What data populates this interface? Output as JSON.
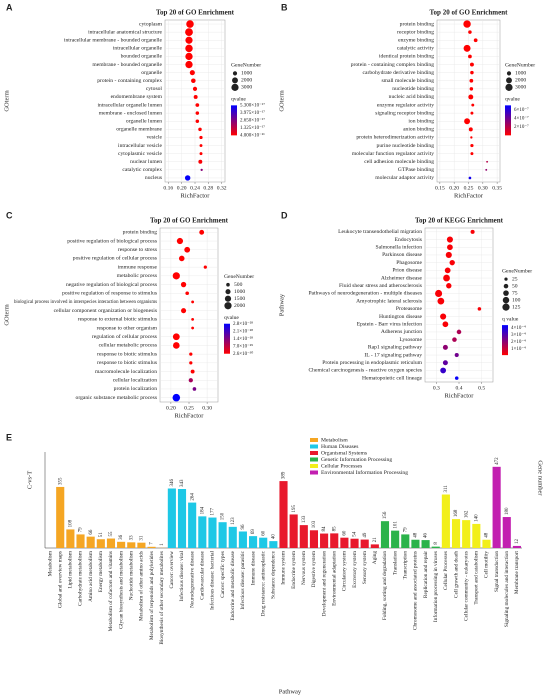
{
  "chart_data": [
    {
      "type": "bubble",
      "panel_label": "A",
      "title": "Top 20 of GO Enrichment",
      "y_label": "GOterm",
      "x_label": "RichFactor",
      "categories": [
        "cytoplasm",
        "intracellular anatomical structure",
        "intracellular membrane - bounded organelle",
        "intracellular organelle",
        "bounded organelle",
        "membrane - bounded organelle",
        "organelle",
        "protein - containing complex",
        "cytosol",
        "endomembrane system",
        "intracellular organelle lumen",
        "membrane - enclosed lumen",
        "organelle lumen",
        "organelle membrane",
        "vesicle",
        "intracellular vesicle",
        "cytoplasmic vesicle",
        "nuclear lumen",
        "catalytic complex",
        "nucleus"
      ],
      "values": [
        0.225,
        0.222,
        0.222,
        0.222,
        0.222,
        0.222,
        0.232,
        0.235,
        0.24,
        0.242,
        0.247,
        0.247,
        0.247,
        0.255,
        0.258,
        0.258,
        0.258,
        0.256,
        0.26,
        0.218
      ],
      "sizes": [
        3300,
        3500,
        3000,
        3200,
        3100,
        3100,
        1500,
        1200,
        1000,
        900,
        800,
        700,
        700,
        700,
        600,
        500,
        500,
        900,
        300,
        1700
      ],
      "qvalues": [
        1e-20,
        1e-20,
        1e-20,
        1e-20,
        1e-20,
        1e-20,
        1e-20,
        1e-20,
        1e-20,
        1e-20,
        1e-20,
        1e-20,
        1e-20,
        1e-20,
        1e-20,
        1e-20,
        1e-20,
        1e-18,
        2.5e-17,
        5.2e-17
      ],
      "xlim": [
        0.15,
        0.33
      ],
      "xticks": [
        0.16,
        {
          "value": 0.2,
          "label": "0.20"
        },
        {
          "value": 0.24,
          "label": "0.24"
        },
        {
          "value": 0.28,
          "label": "0.28"
        },
        {
          "value": 0.32,
          "label": "0.32"
        }
      ],
      "size_title": "GeneNumber",
      "size_ticks": [
        1000,
        2000,
        3000
      ],
      "color_title": "qvalue",
      "color_lim": [
        4e-21,
        5.3e-17
      ],
      "colors": [
        "#ff0000",
        "#0000ff"
      ],
      "color_ticks": [
        {
          "value": 5.3e-17,
          "label": "5.300×10⁻¹⁷"
        },
        {
          "value": 3.975e-17,
          "label": "3.975×10⁻¹⁷"
        },
        {
          "value": 2.65e-17,
          "label": "2.650×10⁻¹⁷"
        },
        {
          "value": 1.325e-17,
          "label": "1.325×10⁻¹⁷"
        },
        {
          "value": 4e-21,
          "label": "4.000×10⁻²¹"
        }
      ]
    },
    {
      "type": "bubble",
      "panel_label": "B",
      "title": "Top 20 of GO Enrichment",
      "y_label": "GOterm",
      "x_label": "RichFactor",
      "categories": [
        "protein binding",
        "receptor binding",
        "enzyme binding",
        "catalytic activity",
        "identical protein binding",
        "protein - containing complex binding",
        "carbohydrate derivative binding",
        "small molecule binding",
        "nucleotide binding",
        "nucleic acid binding",
        "enzyme regulator activity",
        "signaling receptor binding",
        "ion binding",
        "anion binding",
        "protein heterodimerization activity",
        "purine nucleotide binding",
        "molecular function regulator activity",
        "cell adhesion molecule binding",
        "GTPase binding",
        "molecular adaptor activity"
      ],
      "values": [
        0.245,
        0.255,
        0.275,
        0.245,
        0.255,
        0.262,
        0.262,
        0.26,
        0.26,
        0.258,
        0.265,
        0.262,
        0.245,
        0.258,
        0.26,
        0.262,
        0.262,
        0.315,
        0.312,
        0.255
      ],
      "sizes": [
        3200,
        700,
        800,
        2800,
        800,
        900,
        700,
        800,
        700,
        1400,
        500,
        500,
        2000,
        900,
        300,
        600,
        500,
        200,
        200,
        400
      ],
      "qvalues": [
        1e-09,
        1e-09,
        1e-09,
        1e-09,
        1e-09,
        1e-09,
        1e-09,
        1e-09,
        1e-09,
        1e-09,
        1e-09,
        1e-09,
        1e-09,
        1e-09,
        1e-09,
        1e-09,
        1e-09,
        2e-07,
        3e-07,
        6.5e-07
      ],
      "xlim": [
        0.14,
        0.36
      ],
      "xticks": [
        0.15,
        {
          "value": 0.2,
          "label": "0.20"
        },
        0.25,
        {
          "value": 0.3,
          "label": "0.30"
        },
        0.35
      ],
      "size_title": "GeneNumber",
      "size_ticks": [
        1000,
        2000,
        3000
      ],
      "color_title": "qvalue",
      "color_lim": [
        1e-09,
        7e-07
      ],
      "colors": [
        "#ff0000",
        "#0000ff"
      ],
      "color_ticks": [
        {
          "value": 6e-07,
          "label": "6×10⁻⁷"
        },
        {
          "value": 4e-07,
          "label": "4×10⁻⁷"
        },
        {
          "value": 2e-07,
          "label": "2×10⁻⁷"
        }
      ]
    },
    {
      "type": "bubble",
      "panel_label": "C",
      "title": "Top 20 of GO Enrichment",
      "y_label": "GOterm",
      "x_label": "RichFactor",
      "categories": [
        "protein binding",
        "positive regulation of biological process",
        "response to stress",
        "positive regulation of cellular process",
        "immune response",
        "metabolic process",
        "negative regulation of biological process",
        "positive regulation of response to stimulus",
        "biological process involved in interspecies interaction between organisms",
        "cellular component organization or biogenesis",
        "response to external biotic stimulus",
        "response to other organism",
        "regulation of cellular process",
        "cellular metabolic process",
        "response to biotic stimulus",
        "response to biotic stimulus",
        "macromolecule localization",
        "cellular localization",
        "protein localization",
        "organic substance metabolic process"
      ],
      "values": [
        0.285,
        0.225,
        0.245,
        0.23,
        0.295,
        0.215,
        0.235,
        0.245,
        0.26,
        0.235,
        0.26,
        0.26,
        0.215,
        0.215,
        0.255,
        0.255,
        0.26,
        0.255,
        0.265,
        0.215
      ],
      "sizes": [
        900,
        1500,
        1300,
        1200,
        400,
        2000,
        1100,
        500,
        300,
        1000,
        300,
        300,
        1800,
        1700,
        400,
        400,
        600,
        700,
        500,
        2200
      ],
      "qvalues": [
        3e-30,
        3e-30,
        3e-30,
        3e-30,
        3e-30,
        3e-30,
        3e-30,
        3e-30,
        3e-30,
        3e-30,
        3e-30,
        3e-30,
        3e-30,
        3e-30,
        3e-30,
        3e-30,
        3e-30,
        1e-28,
        1.5e-28,
        2.8e-28
      ],
      "xlim": [
        0.17,
        0.33
      ],
      "xticks": [
        {
          "value": 0.2,
          "label": "0.20"
        },
        0.25,
        {
          "value": 0.3,
          "label": "0.30"
        }
      ],
      "size_title": "GeneNumber",
      "size_ticks": [
        500,
        1000,
        1500,
        2000
      ],
      "color_title": "qvalue",
      "color_lim": [
        2.6e-30,
        2.8e-28
      ],
      "colors": [
        "#ff0000",
        "#0000ff"
      ],
      "color_ticks": [
        {
          "value": 2.8e-28,
          "label": "2.8×10⁻²⁸"
        },
        {
          "value": 2.1e-28,
          "label": "2.1×10⁻²⁸"
        },
        {
          "value": 1.4e-28,
          "label": "1.4×10⁻²⁸"
        },
        {
          "value": 7e-29,
          "label": "7.0×10⁻²⁹"
        },
        {
          "value": 2.6e-30,
          "label": "2.6×10⁻³⁰"
        }
      ]
    },
    {
      "type": "bubble",
      "panel_label": "D",
      "title": "Top 20 of KEGG Enrichment",
      "y_label": "Pathway",
      "x_label": "RichFactor",
      "categories": [
        "Leukocyte transendothelial migration",
        "Endocytosis",
        "Salmonella infection",
        "Parkinson disease",
        "Phagosome",
        "Prion disease",
        "Alzheimer disease",
        "Fluid shear stress and atherosclerosis",
        "Pathways of neurodegeneration - multiple diseases",
        "Amyotrophic lateral sclerosis",
        "Proteasome",
        "Huntington disease",
        "Epstein - Barr virus infection",
        "Adherens junction",
        "Lysosome",
        "Rap1 signaling pathway",
        "IL - 17 signaling pathway",
        "Protein processing in endoplasmic reticulum",
        "Chemical carcinogenesis - reactive oxygen species",
        "Hematopoietic cell lineage"
      ],
      "values": [
        0.46,
        0.36,
        0.36,
        0.355,
        0.37,
        0.35,
        0.345,
        0.355,
        0.31,
        0.32,
        0.49,
        0.33,
        0.34,
        0.4,
        0.38,
        0.34,
        0.39,
        0.34,
        0.33,
        0.39
      ],
      "sizes": [
        40,
        90,
        80,
        90,
        70,
        80,
        110,
        70,
        120,
        110,
        30,
        90,
        80,
        50,
        50,
        60,
        40,
        60,
        80,
        30
      ],
      "qvalues": [
        2e-05,
        2e-05,
        2e-05,
        2e-05,
        2e-05,
        2e-05,
        2e-05,
        2e-05,
        2e-05,
        2e-05,
        2e-05,
        2e-05,
        2e-05,
        0.00015,
        0.00015,
        0.0002,
        0.00025,
        0.00028,
        0.00035,
        0.00043
      ],
      "xlim": [
        0.25,
        0.55
      ],
      "xticks": [
        0.3,
        0.4,
        0.5
      ],
      "size_title": "GeneNumber",
      "size_ticks": [
        25,
        50,
        75,
        100,
        125
      ],
      "color_title": "q value",
      "color_lim": [
        1e-05,
        0.00044
      ],
      "colors": [
        "#ff0000",
        "#0000ff"
      ],
      "color_ticks": [
        {
          "value": 0.0004,
          "label": "4×10⁻⁴"
        },
        {
          "value": 0.0003,
          "label": "3×10⁻⁴"
        },
        {
          "value": 0.0002,
          "label": "2×10⁻⁴"
        },
        {
          "value": 0.0001,
          "label": "1×10⁻⁴"
        }
      ]
    },
    {
      "type": "bar",
      "panel_label": "E",
      "y_label": "C-vs-T",
      "y2_label": "Gene number",
      "x_label": "Pathway",
      "ylim": [
        0,
        500
      ],
      "series": [
        {
          "name": "Metabolism",
          "color": "#f5a623",
          "categories": [
            "Metabolism",
            "Global and overview maps",
            "Lipid metabolism",
            "Carbohydrate metabolism",
            "Amino acid metabolism",
            "Energy metabolism",
            "Metabolism of cofactors and vitamins",
            "Glycan biosynthesis and metabolism",
            "Nucleotide metabolism",
            "Metabolism of other amino acids",
            "Metabolism of terpenoids and polyketides",
            "Biosynthesis of other secondary metabolites"
          ],
          "values": [
            null,
            355,
            108,
            79,
            66,
            51,
            55,
            36,
            33,
            31,
            7,
            1
          ]
        },
        {
          "name": "Human Diseases",
          "color": "#1ec8e6",
          "categories": [
            "Cancer: overview",
            "Infectious disease: viral",
            "Neurodegenerative disease",
            "Cardiovascular disease",
            "Infectious disease: bacterial",
            "Cancer: specific types",
            "Endocrine and metabolic disease",
            "Infectious disease: parasitic",
            "Immune disease",
            "Drug resistance: antineoplastic",
            "Substance dependence"
          ],
          "values": [
            346,
            343,
            264,
            184,
            177,
            150,
            123,
            96,
            69,
            60,
            40
          ]
        },
        {
          "name": "Organismal Systems",
          "color": "#e8192c",
          "categories": [
            "Immune system",
            "Endocrine system",
            "Nervous system",
            "Digestive system",
            "Development and regeneration",
            "Environmental adaptation",
            "Circulatory system",
            "Excretory system",
            "Sensory system",
            "Aging"
          ],
          "values": [
            389,
            195,
            133,
            103,
            84,
            85,
            60,
            54,
            49,
            21
          ]
        },
        {
          "name": "Genetic Information Processing",
          "color": "#2bb34a",
          "categories": [
            "Folding, sorting and degradation",
            "Translation",
            "Transcription",
            "Chromosome and associated proteins",
            "Replication and repair",
            "Information processing in viruses"
          ],
          "values": [
            156,
            101,
            79,
            48,
            46,
            8
          ]
        },
        {
          "name": "Cellular Processes",
          "color": "#f2ef1a",
          "categories": [
            "Cellular Processes",
            "Cell growth and death",
            "Cellular community - eukaryotes",
            "Transport and catabolism",
            "Cell motility"
          ],
          "values": [
            311,
            168,
            162,
            140,
            48
          ]
        },
        {
          "name": "Environmental Information Processing",
          "color": "#c21fb0",
          "categories": [
            "Signal transduction",
            "Signaling molecules and interaction",
            "Membrane transport"
          ],
          "values": [
            472,
            180,
            12
          ]
        }
      ]
    }
  ]
}
